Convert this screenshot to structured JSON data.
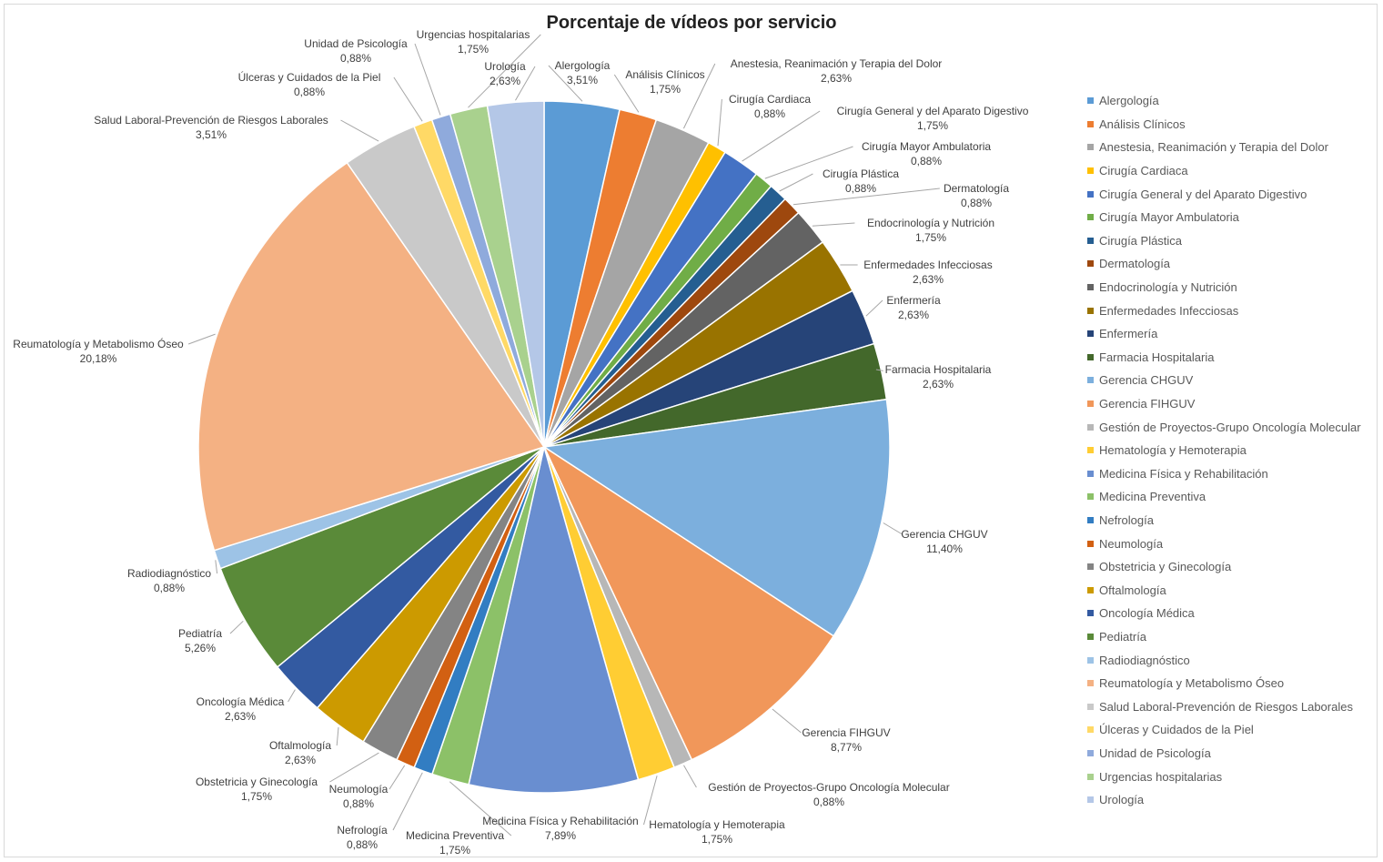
{
  "chart_data": {
    "type": "pie",
    "title": "Porcentaje de vídeos por servicio",
    "legend_position": "right",
    "slices": [
      {
        "name": "Alergología",
        "value": 3.51,
        "label": "3,51%",
        "color": "#5b9bd5"
      },
      {
        "name": "Análisis Clínicos",
        "value": 1.75,
        "label": "1,75%",
        "color": "#ed7d31"
      },
      {
        "name": "Anestesia, Reanimación y Terapia del Dolor",
        "value": 2.63,
        "label": "2,63%",
        "color": "#a5a5a5"
      },
      {
        "name": "Cirugía Cardiaca",
        "value": 0.88,
        "label": "0,88%",
        "color": "#ffc000"
      },
      {
        "name": "Cirugía General y del Aparato Digestivo",
        "value": 1.75,
        "label": "1,75%",
        "color": "#4472c4"
      },
      {
        "name": "Cirugía Mayor Ambulatoria",
        "value": 0.88,
        "label": "0,88%",
        "color": "#70ad47"
      },
      {
        "name": "Cirugía Plástica",
        "value": 0.88,
        "label": "0,88%",
        "color": "#255e91"
      },
      {
        "name": "Dermatología",
        "value": 0.88,
        "label": "0,88%",
        "color": "#9e480e"
      },
      {
        "name": "Endocrinología y Nutrición",
        "value": 1.75,
        "label": "1,75%",
        "color": "#636363"
      },
      {
        "name": "Enfermedades Infecciosas",
        "value": 2.63,
        "label": "2,63%",
        "color": "#997300"
      },
      {
        "name": "Enfermería",
        "value": 2.63,
        "label": "2,63%",
        "color": "#264478"
      },
      {
        "name": "Farmacia Hospitalaria",
        "value": 2.63,
        "label": "2,63%",
        "color": "#43682b"
      },
      {
        "name": "Gerencia CHGUV",
        "value": 11.4,
        "label": "11,40%",
        "color": "#7cafdd"
      },
      {
        "name": "Gerencia FIHGUV",
        "value": 8.77,
        "label": "8,77%",
        "color": "#f1975a"
      },
      {
        "name": "Gestión de Proyectos-Grupo Oncología Molecular",
        "value": 0.88,
        "label": "0,88%",
        "color": "#b7b7b7"
      },
      {
        "name": "Hematología y Hemoterapia",
        "value": 1.75,
        "label": "1,75%",
        "color": "#ffcd33"
      },
      {
        "name": "Medicina Física y Rehabilitación",
        "value": 7.89,
        "label": "7,89%",
        "color": "#698ed0"
      },
      {
        "name": "Medicina Preventiva",
        "value": 1.75,
        "label": "1,75%",
        "color": "#8cc168"
      },
      {
        "name": "Nefrología",
        "value": 0.88,
        "label": "0,88%",
        "color": "#327dc2"
      },
      {
        "name": "Neumología",
        "value": 0.88,
        "label": "0,88%",
        "color": "#d26012"
      },
      {
        "name": "Obstetricia y Ginecología",
        "value": 1.75,
        "label": "1,75%",
        "color": "#848484"
      },
      {
        "name": "Oftalmología",
        "value": 2.63,
        "label": "2,63%",
        "color": "#cc9a00"
      },
      {
        "name": "Oncología Médica",
        "value": 2.63,
        "label": "2,63%",
        "color": "#335aa1"
      },
      {
        "name": "Pediatría",
        "value": 5.26,
        "label": "5,26%",
        "color": "#5a8a39"
      },
      {
        "name": "Radiodiagnóstico",
        "value": 0.88,
        "label": "0,88%",
        "color": "#9dc3e6"
      },
      {
        "name": "Reumatología y Metabolismo Óseo",
        "value": 20.18,
        "label": "20,18%",
        "color": "#f4b183"
      },
      {
        "name": "Salud Laboral-Prevención de Riesgos Laborales",
        "value": 3.51,
        "label": "3,51%",
        "color": "#c9c9c9"
      },
      {
        "name": "Úlceras y Cuidados de la Piel",
        "value": 0.88,
        "label": "0,88%",
        "color": "#ffd966"
      },
      {
        "name": "Unidad de Psicología",
        "value": 0.88,
        "label": "0,88%",
        "color": "#8faadc"
      },
      {
        "name": "Urgencias hospitalarias",
        "value": 1.75,
        "label": "1,75%",
        "color": "#a9d18e"
      },
      {
        "name": "Urología",
        "value": 2.63,
        "label": "2,63%",
        "color": "#b4c7e7"
      }
    ]
  }
}
